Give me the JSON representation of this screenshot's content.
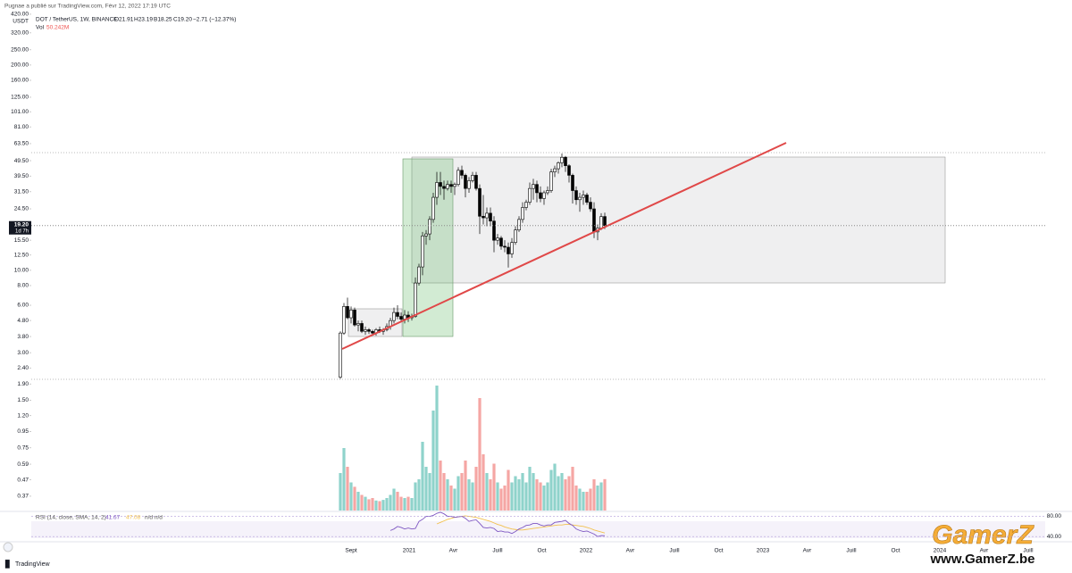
{
  "chart_data": {
    "type": "candlestick",
    "title": "Pugnae a publié sur TradingView.com, Févr 12, 2022 17:19 UTC",
    "symbol": "DOT / TetherUS, 1W, BINANCE",
    "legend_ohlc": [
      "O21.91",
      "H23.19",
      "B18.25",
      "C19.20",
      "−2.71 (−12.37%)"
    ],
    "y_unit": "USDT",
    "log_scale": true,
    "grid": false,
    "ylim": [
      0.3,
      484
    ],
    "yticks": [
      {
        "value": 420,
        "label": "420.00"
      },
      {
        "value": 320,
        "label": "320.00"
      },
      {
        "value": 250,
        "label": "250.00"
      },
      {
        "value": 200,
        "label": "200.00"
      },
      {
        "value": 160,
        "label": "160.00"
      },
      {
        "value": 125,
        "label": "125.00"
      },
      {
        "value": 101,
        "label": "101.00"
      },
      {
        "value": 81,
        "label": "81.00"
      },
      {
        "value": 63.5,
        "label": "63.50"
      },
      {
        "value": 49.5,
        "label": "49.50"
      },
      {
        "value": 39.5,
        "label": "39.50"
      },
      {
        "value": 31.5,
        "label": "31.50"
      },
      {
        "value": 24.5,
        "label": "24.50"
      },
      {
        "value": 15.5,
        "label": "15.50"
      },
      {
        "value": 12.5,
        "label": "12.50"
      },
      {
        "value": 10,
        "label": "10.00"
      },
      {
        "value": 8,
        "label": "8.00"
      },
      {
        "value": 6,
        "label": "6.00"
      },
      {
        "value": 4.8,
        "label": "4.80"
      },
      {
        "value": 3.8,
        "label": "3.80"
      },
      {
        "value": 3,
        "label": "3.00"
      },
      {
        "value": 2.4,
        "label": "2.40"
      },
      {
        "value": 1.9,
        "label": "1.90"
      },
      {
        "value": 1.5,
        "label": "1.50"
      },
      {
        "value": 1.2,
        "label": "1.20"
      },
      {
        "value": 0.95,
        "label": "0.95"
      },
      {
        "value": 0.75,
        "label": "0.75"
      },
      {
        "value": 0.59,
        "label": "0.59"
      },
      {
        "value": 0.47,
        "label": "0.47"
      },
      {
        "value": 0.37,
        "label": "0.37"
      }
    ],
    "last_price": {
      "value": 19.2,
      "label": "19.20",
      "countdown": "1d 7h"
    },
    "x_labels": [
      "Sept",
      "2021",
      "Avr",
      "Juill",
      "Oct",
      "2022",
      "Avr",
      "Juill",
      "Oct",
      "2023",
      "Avr",
      "Juill",
      "Oct",
      "2024",
      "Avr",
      "Juill"
    ],
    "up_color": "#ffffff",
    "down_color": "#000000",
    "open": [
      2.1,
      4.0,
      5.9,
      5.0,
      5.6,
      4.5,
      4.6,
      4.1,
      4.2,
      4.1,
      4.0,
      4.2,
      4.1,
      4.2,
      4.4,
      4.8,
      5.4,
      5.1,
      4.9,
      5.2,
      5.0,
      5.1,
      8.3,
      10.5,
      16.5,
      17,
      21,
      29,
      36,
      34,
      33,
      35,
      34,
      35,
      43,
      40,
      33,
      37,
      40,
      33,
      22,
      21.5,
      23,
      20.5,
      15.5,
      16,
      14.2,
      14,
      12.7,
      15,
      18,
      21,
      25,
      27,
      33,
      35,
      31,
      28.5,
      31,
      32,
      42,
      44,
      48,
      52,
      46,
      40,
      32,
      28,
      29,
      30,
      27,
      24.5,
      17.5,
      18.5,
      21.91
    ],
    "high": [
      4.1,
      6.2,
      6.7,
      5.9,
      5.8,
      4.8,
      4.8,
      4.4,
      4.3,
      4.2,
      4.3,
      4.4,
      4.3,
      4.6,
      5.0,
      5.8,
      6.0,
      5.4,
      5.6,
      5.5,
      5.3,
      9.0,
      11,
      17.5,
      18,
      22,
      31,
      42,
      42,
      37,
      37,
      37,
      36,
      45,
      46,
      41,
      39,
      42,
      42,
      35,
      30,
      25,
      25,
      22,
      17,
      16.5,
      15.5,
      15,
      16,
      19,
      22,
      27,
      28,
      36,
      38,
      37,
      34,
      32,
      34,
      44,
      46,
      49,
      55,
      53,
      47,
      41,
      34,
      31,
      32,
      31,
      29,
      27,
      19.5,
      23,
      23.19
    ],
    "low": [
      2.05,
      3.9,
      4.9,
      4.6,
      4.4,
      4.1,
      4.0,
      3.9,
      3.95,
      3.9,
      3.85,
      4.0,
      3.9,
      4.1,
      4.2,
      4.6,
      4.9,
      4.7,
      4.6,
      4.7,
      4.8,
      5.0,
      8.0,
      9.3,
      14.5,
      15.5,
      20,
      26,
      30,
      28,
      32,
      31,
      30,
      34,
      38,
      29,
      31,
      36,
      32,
      17,
      19.5,
      19,
      19,
      13,
      14.5,
      13.5,
      13,
      10.4,
      12,
      14.5,
      17.5,
      20,
      24,
      26,
      28,
      27,
      27,
      26,
      30,
      31,
      39,
      41,
      45,
      42,
      36,
      26.5,
      26,
      23.5,
      26,
      26,
      23.5,
      16,
      15.5,
      18,
      18.25
    ],
    "close": [
      4.0,
      5.9,
      5.0,
      5.6,
      4.5,
      4.6,
      4.1,
      4.2,
      4.1,
      4.0,
      4.2,
      4.1,
      4.2,
      4.4,
      4.8,
      5.4,
      5.1,
      4.9,
      5.2,
      5.0,
      5.1,
      8.3,
      10.5,
      16.5,
      17,
      21,
      29,
      36,
      34,
      33,
      35,
      34,
      35,
      43,
      40,
      33,
      37,
      40,
      33,
      22,
      21.5,
      23,
      20.5,
      15.5,
      16,
      14.2,
      14,
      12.7,
      15,
      18,
      21,
      25,
      27,
      33,
      35,
      31,
      28.5,
      31,
      32,
      42,
      44,
      48,
      52,
      46,
      40,
      32,
      28,
      29,
      30,
      27,
      24.5,
      17.5,
      18.5,
      21.9,
      19.2
    ],
    "volume": {
      "name": "Vol",
      "up_color": "#8fd3cb",
      "down_color": "#f5a6a4",
      "values": [
        60,
        100,
        70,
        45,
        38,
        30,
        25,
        22,
        18,
        20,
        16,
        15,
        17,
        20,
        25,
        35,
        30,
        22,
        20,
        22,
        20,
        45,
        50,
        110,
        70,
        60,
        160,
        200,
        80,
        60,
        50,
        40,
        35,
        55,
        60,
        80,
        50,
        45,
        70,
        180,
        90,
        60,
        50,
        75,
        45,
        35,
        40,
        65,
        45,
        55,
        50,
        60,
        45,
        70,
        60,
        50,
        45,
        40,
        45,
        65,
        75,
        55,
        60,
        50,
        55,
        70,
        40,
        35,
        30,
        30,
        35,
        50,
        40,
        45,
        50.242
      ],
      "value_labels": {
        "74": "50.242M"
      }
    },
    "rsi": {
      "name": "RSI (14, close, SMA, 14, 2)",
      "color": "#7e57c2",
      "sma_color": "#f2c14e",
      "value_label": "41.67",
      "sma_label": "47.08",
      "na": "n/d n/d",
      "ylim": [
        35,
        88
      ],
      "yticks": [
        {
          "value": 80,
          "label": "80.00"
        },
        {
          "value": 40,
          "label": "40.00"
        }
      ],
      "values": [
        null,
        null,
        null,
        null,
        null,
        null,
        null,
        null,
        null,
        null,
        null,
        null,
        null,
        null,
        52,
        55,
        60,
        58,
        55,
        57,
        55,
        56,
        70,
        74,
        80,
        80,
        82,
        86,
        88,
        85,
        80,
        80,
        78,
        79,
        80,
        76,
        70,
        72,
        73,
        66,
        58,
        57,
        58,
        56,
        50,
        51,
        49,
        49,
        46,
        50,
        55,
        58,
        62,
        63,
        66,
        66,
        63,
        61,
        63,
        63,
        68,
        69,
        70,
        72,
        66,
        62,
        55,
        52,
        50,
        51,
        48,
        45,
        40,
        42,
        41.67
      ],
      "sma": [
        null,
        null,
        null,
        null,
        null,
        null,
        null,
        null,
        null,
        null,
        null,
        null,
        null,
        null,
        null,
        null,
        null,
        null,
        null,
        null,
        null,
        null,
        null,
        null,
        null,
        null,
        null,
        65,
        68,
        71,
        74,
        76,
        78,
        79,
        80,
        81,
        80,
        79,
        78,
        76,
        74,
        72,
        70,
        67,
        64,
        62,
        59,
        57,
        55,
        54,
        53,
        53,
        54,
        55,
        56,
        57,
        58,
        59,
        60,
        61,
        62,
        63,
        63,
        64,
        64,
        63,
        62,
        61,
        60,
        58,
        56,
        53,
        51,
        49,
        47.08
      ]
    },
    "footer": "TradingView",
    "watermark": {
      "brand": "GamerZ",
      "url": "www.GamerZ.be"
    }
  }
}
